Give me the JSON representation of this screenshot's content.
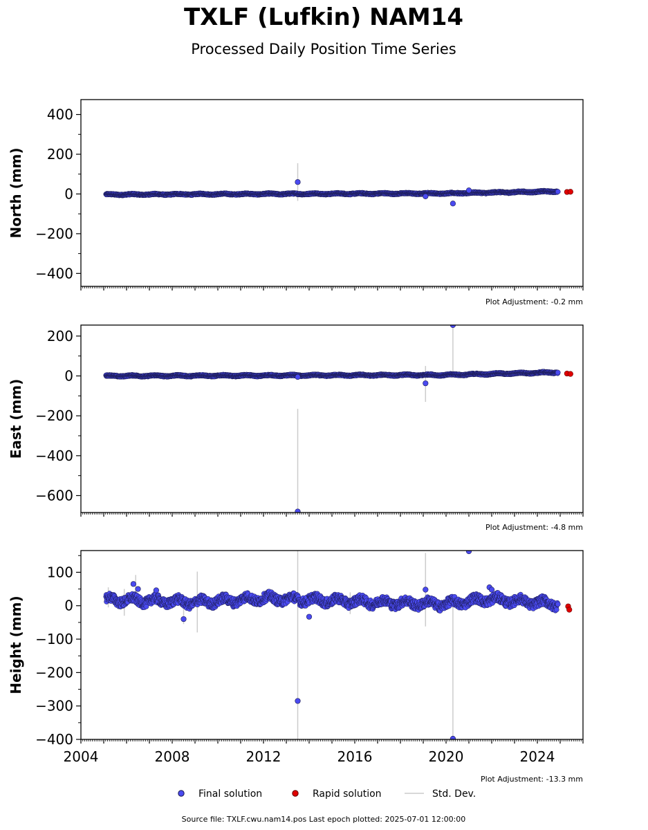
{
  "header": {
    "title": "TXLF (Lufkin) NAM14",
    "subtitle": "Processed Daily Position Time Series"
  },
  "legend": {
    "final_label": "Final solution",
    "rapid_label": "Rapid solution",
    "std_label": "Std. Dev."
  },
  "footer": {
    "source": "Source file: TXLF.cwu.nam14.pos  Last epoch plotted: 2025-07-01 12:00:00"
  },
  "colors": {
    "final": "#4a4af0",
    "final_edge": "#1a1a50",
    "rapid": "#e00000",
    "std": "#cccccc"
  },
  "chart_data": [
    {
      "type": "scatter",
      "ylabel": "North (mm)",
      "adjustment": "Plot Adjustment: -0.2 mm",
      "xlim": [
        2004,
        2026
      ],
      "ylim": [
        -465,
        475
      ],
      "yticks": [
        400,
        200,
        0,
        -200,
        -400
      ],
      "ytick_labels": [
        "400",
        "200",
        "0",
        "−200",
        "−400"
      ],
      "trend": [
        [
          2005.1,
          -3
        ],
        [
          2012,
          0
        ],
        [
          2020,
          3
        ],
        [
          2024.9,
          13
        ]
      ],
      "noise": 3,
      "noise_cycle": 2,
      "std_bars": [
        {
          "x": 2013.5,
          "y0": -35,
          "y1": 155
        }
      ],
      "outliers": [
        [
          2013.5,
          60
        ],
        [
          2020.3,
          -48
        ],
        [
          2021.0,
          18
        ],
        [
          2019.1,
          -12
        ]
      ],
      "rapid": [
        [
          2025.3,
          10
        ],
        [
          2025.45,
          11
        ]
      ]
    },
    {
      "type": "scatter",
      "ylabel": "East (mm)",
      "adjustment": "Plot Adjustment: -4.8 mm",
      "xlim": [
        2004,
        2026
      ],
      "ylim": [
        -685,
        255
      ],
      "yticks": [
        200,
        0,
        -200,
        -400,
        -600
      ],
      "ytick_labels": [
        "200",
        "0",
        "−200",
        "−400",
        "−600"
      ],
      "trend": [
        [
          2005.1,
          0
        ],
        [
          2012,
          2
        ],
        [
          2020,
          5
        ],
        [
          2024.9,
          18
        ]
      ],
      "noise": 3,
      "noise_cycle": 2.5,
      "std_bars": [
        {
          "x": 2013.5,
          "y0": -685,
          "y1": -165
        },
        {
          "x": 2019.1,
          "y0": -130,
          "y1": 50
        },
        {
          "x": 2020.3,
          "y0": -5,
          "y1": 255
        }
      ],
      "outliers": [
        [
          2013.5,
          -680
        ],
        [
          2019.1,
          -37
        ],
        [
          2020.3,
          255
        ],
        [
          2013.5,
          -5
        ]
      ],
      "rapid": [
        [
          2025.3,
          12
        ],
        [
          2025.45,
          10
        ]
      ]
    },
    {
      "type": "scatter",
      "ylabel": "Height (mm)",
      "adjustment": "Plot Adjustment: -13.3 mm",
      "xlim": [
        2004,
        2026
      ],
      "ylim": [
        -400,
        165
      ],
      "yticks": [
        100,
        0,
        -100,
        -200,
        -300,
        -400
      ],
      "ytick_labels": [
        "100",
        "0",
        "−100",
        "−200",
        "−300",
        "−400"
      ],
      "trend": [
        [
          2005.1,
          18
        ],
        [
          2007,
          15
        ],
        [
          2009,
          10
        ],
        [
          2012,
          22
        ],
        [
          2014,
          18
        ],
        [
          2017,
          10
        ],
        [
          2020,
          5
        ],
        [
          2021.8,
          20
        ],
        [
          2024.9,
          5
        ]
      ],
      "noise": 13,
      "noise_cycle": 8,
      "std_bars": [
        {
          "x": 2005.2,
          "y0": -5,
          "y1": 55
        },
        {
          "x": 2005.9,
          "y0": -30,
          "y1": 50
        },
        {
          "x": 2006.4,
          "y0": 10,
          "y1": 92
        },
        {
          "x": 2008.5,
          "y0": -55,
          "y1": 0
        },
        {
          "x": 2009.1,
          "y0": -80,
          "y1": 102
        },
        {
          "x": 2013.5,
          "y0": -400,
          "y1": 165
        },
        {
          "x": 2019.1,
          "y0": -62,
          "y1": 158
        },
        {
          "x": 2020.3,
          "y0": -400,
          "y1": 20
        },
        {
          "x": 2015.8,
          "y0": -25,
          "y1": 40
        }
      ],
      "outliers": [
        [
          2006.3,
          65
        ],
        [
          2006.5,
          50
        ],
        [
          2007.3,
          46
        ],
        [
          2008.5,
          -40
        ],
        [
          2013.5,
          -285
        ],
        [
          2014.0,
          -33
        ],
        [
          2019.1,
          48
        ],
        [
          2020.3,
          -398
        ],
        [
          2021.0,
          163
        ],
        [
          2021.9,
          55
        ],
        [
          2022.0,
          48
        ]
      ],
      "rapid": [
        [
          2025.35,
          -2
        ],
        [
          2025.4,
          -12
        ]
      ]
    }
  ],
  "x_axis": {
    "ticks": [
      2004,
      2008,
      2012,
      2016,
      2020,
      2024
    ],
    "tick_labels": [
      "2004",
      "2008",
      "2012",
      "2016",
      "2020",
      "2024"
    ]
  }
}
